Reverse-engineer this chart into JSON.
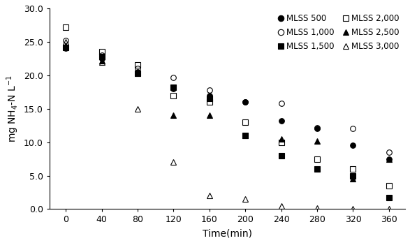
{
  "time": [
    0,
    40,
    80,
    120,
    160,
    200,
    240,
    280,
    320,
    360
  ],
  "MLSS_500": [
    24.0,
    22.5,
    20.5,
    18.0,
    17.0,
    16.0,
    13.2,
    12.0,
    9.5,
    7.5
  ],
  "MLSS_1000": [
    25.2,
    23.0,
    21.0,
    19.7,
    17.8,
    16.0,
    15.8,
    12.2,
    12.0,
    8.5
  ],
  "MLSS_1500": [
    24.2,
    22.8,
    20.3,
    18.2,
    16.5,
    11.0,
    8.0,
    6.0,
    5.0,
    1.7
  ],
  "MLSS_2000": [
    27.2,
    23.5,
    21.5,
    17.0,
    16.0,
    13.0,
    10.0,
    7.5,
    6.0,
    3.5
  ],
  "MLSS_2500": [
    24.5,
    22.2,
    20.3,
    14.0,
    14.0,
    11.0,
    10.5,
    10.2,
    4.5,
    7.5
  ],
  "MLSS_3000": [
    25.0,
    22.0,
    15.0,
    7.0,
    2.0,
    1.5,
    0.5,
    0.2,
    0.1,
    0.1
  ],
  "ylabel": "mg NH4-N L-1",
  "xlabel": "Time(min)",
  "ylim": [
    0,
    30
  ],
  "yticks": [
    0.0,
    5.0,
    10.0,
    15.0,
    20.0,
    25.0,
    30.0
  ],
  "xticks": [
    0,
    40,
    80,
    120,
    160,
    200,
    240,
    280,
    320,
    360
  ],
  "bg_color": "#ffffff",
  "series": [
    {
      "label": "MLSS 500",
      "key": "MLSS_500",
      "marker": "o",
      "filled": true
    },
    {
      "label": "MLSS 1,000",
      "key": "MLSS_1000",
      "marker": "o",
      "filled": false
    },
    {
      "label": "MLSS 1,500",
      "key": "MLSS_1500",
      "marker": "s",
      "filled": true
    },
    {
      "label": "MLSS 2,000",
      "key": "MLSS_2000",
      "marker": "s",
      "filled": false
    },
    {
      "label": "MLSS 2,500",
      "key": "MLSS_2500",
      "marker": "^",
      "filled": true
    },
    {
      "label": "MLSS 3,000",
      "key": "MLSS_3000",
      "marker": "^",
      "filled": false
    }
  ]
}
